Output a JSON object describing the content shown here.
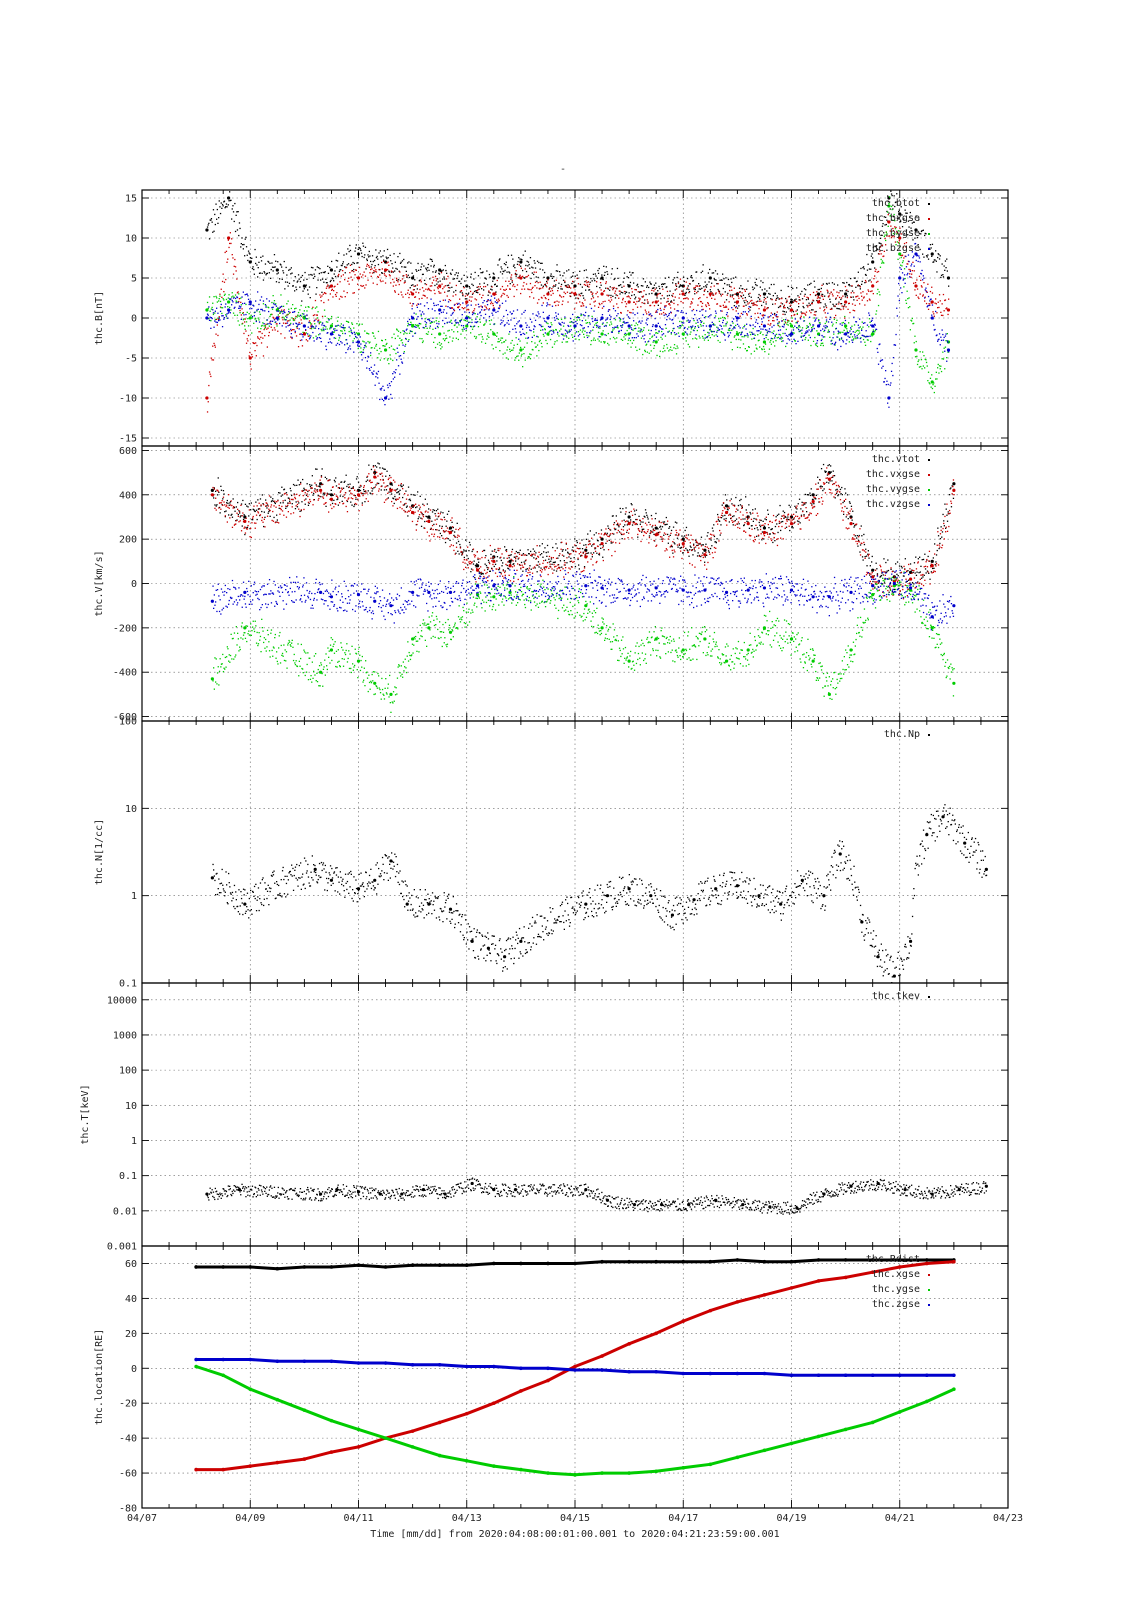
{
  "page": {
    "title": "-"
  },
  "x_axis": {
    "label": "Time [mm/dd]  from 2020:04:08:00:01:00.001  to  2020:04:21:23:59:00.001",
    "tick_labels": [
      "04/07",
      "04/09",
      "04/11",
      "04/13",
      "04/15",
      "04/17",
      "04/19",
      "04/21",
      "04/23"
    ],
    "range_days": [
      7,
      23
    ],
    "data_range_days": [
      8.0,
      22.0
    ]
  },
  "colors": {
    "black": "#000000",
    "red": "#cc0000",
    "green": "#00cc00",
    "blue": "#0000cc"
  },
  "chart_data": [
    {
      "type": "scatter",
      "ylabel": "thc.B[nT]",
      "yscale": "linear",
      "ylim": [
        -16,
        16
      ],
      "yticks": [
        15,
        10,
        5,
        0,
        -5,
        -10,
        -15
      ],
      "grid": true,
      "legend_placement": "top-right",
      "series": [
        {
          "name": "thc.btot",
          "color": "black",
          "x": [
            8.2,
            8.6,
            9.0,
            9.5,
            10.0,
            10.5,
            11.0,
            11.5,
            12.0,
            12.5,
            13.0,
            13.5,
            14.0,
            14.5,
            15.0,
            15.5,
            16.0,
            16.5,
            17.0,
            17.5,
            18.0,
            18.5,
            19.0,
            19.5,
            20.0,
            20.5,
            20.8,
            21.0,
            21.3,
            21.6,
            21.9
          ],
          "values": [
            11,
            15,
            7,
            6,
            4,
            6,
            8,
            7,
            5,
            6,
            4,
            5,
            7,
            5,
            4,
            5,
            4,
            3,
            4,
            5,
            3,
            3,
            2,
            3,
            3,
            7,
            15,
            13,
            11,
            8,
            5
          ]
        },
        {
          "name": "thc.bxgse",
          "color": "red",
          "x": [
            8.2,
            8.6,
            9.0,
            9.5,
            10.0,
            10.5,
            11.0,
            11.5,
            12.0,
            12.5,
            13.0,
            13.5,
            14.0,
            14.5,
            15.0,
            15.5,
            16.0,
            16.5,
            17.0,
            17.5,
            18.0,
            18.5,
            19.0,
            19.5,
            20.0,
            20.5,
            20.8,
            21.0,
            21.3,
            21.6,
            21.9
          ],
          "values": [
            -10,
            10,
            -5,
            0,
            -2,
            4,
            5,
            6,
            3,
            4,
            2,
            3,
            5,
            3,
            3,
            3,
            2,
            2,
            3,
            3,
            2,
            1,
            1,
            2,
            2,
            4,
            12,
            10,
            4,
            2,
            1
          ]
        },
        {
          "name": "thc.bygse",
          "color": "green",
          "x": [
            8.2,
            8.6,
            9.0,
            9.5,
            10.0,
            10.5,
            11.0,
            11.5,
            12.0,
            12.5,
            13.0,
            13.5,
            14.0,
            14.5,
            15.0,
            15.5,
            16.0,
            16.5,
            17.0,
            17.5,
            18.0,
            18.5,
            19.0,
            19.5,
            20.0,
            20.5,
            20.8,
            21.0,
            21.3,
            21.6,
            21.9
          ],
          "values": [
            1,
            2,
            0,
            1,
            0,
            -1,
            -2,
            -4,
            -1,
            -2,
            -1,
            -2,
            -4,
            -2,
            -1,
            -2,
            -2,
            -3,
            -2,
            -1,
            -2,
            -3,
            -1,
            -2,
            -1,
            -2,
            14,
            8,
            -4,
            -8,
            -3
          ]
        },
        {
          "name": "thc.bzgse",
          "color": "blue",
          "x": [
            8.2,
            8.6,
            9.0,
            9.5,
            10.0,
            10.5,
            11.0,
            11.5,
            12.0,
            12.5,
            13.0,
            13.5,
            14.0,
            14.5,
            15.0,
            15.5,
            16.0,
            16.5,
            17.0,
            17.5,
            18.0,
            18.5,
            19.0,
            19.5,
            20.0,
            20.5,
            20.8,
            21.0,
            21.3,
            21.6,
            21.9
          ],
          "values": [
            0,
            1,
            2,
            0,
            -1,
            -2,
            -3,
            -10,
            0,
            1,
            0,
            1,
            -1,
            0,
            -1,
            0,
            -1,
            -1,
            0,
            -1,
            0,
            -1,
            -2,
            -1,
            -2,
            -1,
            -10,
            5,
            8,
            0,
            -4
          ]
        }
      ]
    },
    {
      "type": "scatter",
      "ylabel": "thc.V[km/s]",
      "yscale": "linear",
      "ylim": [
        -620,
        620
      ],
      "yticks": [
        600,
        400,
        200,
        0,
        -200,
        -400,
        -600
      ],
      "grid": true,
      "legend_placement": "top-right",
      "series": [
        {
          "name": "thc.vtot",
          "color": "black",
          "x": [
            8.3,
            8.9,
            10.3,
            10.5,
            11.0,
            11.3,
            11.6,
            12.0,
            12.3,
            12.7,
            13.2,
            13.5,
            13.8,
            15.2,
            15.5,
            16.0,
            16.5,
            17.0,
            17.4,
            17.8,
            18.2,
            18.5,
            19.0,
            19.4,
            19.7,
            20.1,
            20.5,
            20.9,
            21.2,
            21.6,
            22.0
          ],
          "values": [
            420,
            300,
            450,
            400,
            420,
            500,
            450,
            350,
            300,
            250,
            80,
            120,
            100,
            150,
            200,
            300,
            250,
            200,
            150,
            350,
            300,
            250,
            300,
            400,
            500,
            300,
            60,
            30,
            50,
            100,
            450
          ]
        },
        {
          "name": "thc.vxgse",
          "color": "red",
          "x": [
            8.3,
            8.9,
            10.3,
            10.5,
            11.0,
            11.3,
            11.6,
            12.0,
            12.3,
            12.7,
            13.2,
            13.5,
            13.8,
            15.2,
            15.5,
            16.0,
            16.5,
            17.0,
            17.4,
            17.8,
            18.2,
            18.5,
            19.0,
            19.4,
            19.7,
            20.1,
            20.5,
            20.9,
            21.2,
            21.6,
            22.0
          ],
          "values": [
            400,
            280,
            420,
            380,
            400,
            480,
            420,
            320,
            280,
            230,
            60,
            100,
            80,
            120,
            180,
            270,
            220,
            180,
            130,
            320,
            270,
            230,
            270,
            370,
            470,
            270,
            30,
            10,
            20,
            80,
            420
          ]
        },
        {
          "name": "thc.vygse",
          "color": "green",
          "x": [
            8.3,
            8.9,
            10.3,
            10.5,
            11.0,
            11.3,
            11.6,
            12.0,
            12.3,
            12.7,
            13.2,
            13.5,
            13.8,
            15.2,
            15.5,
            16.0,
            16.5,
            17.0,
            17.4,
            17.8,
            18.2,
            18.5,
            19.0,
            19.4,
            19.7,
            20.1,
            20.5,
            20.9,
            21.2,
            21.6,
            22.0
          ],
          "values": [
            -430,
            -200,
            -400,
            -300,
            -350,
            -450,
            -500,
            -250,
            -200,
            -220,
            -50,
            -60,
            -40,
            -100,
            -200,
            -350,
            -250,
            -300,
            -250,
            -350,
            -300,
            -200,
            -250,
            -350,
            -500,
            -300,
            -50,
            -10,
            -30,
            -200,
            -450
          ]
        },
        {
          "name": "thc.vzgse",
          "color": "blue",
          "x": [
            8.3,
            8.9,
            10.3,
            10.5,
            11.0,
            11.3,
            11.6,
            12.0,
            12.3,
            12.7,
            13.2,
            13.5,
            13.8,
            15.2,
            15.5,
            16.0,
            16.5,
            17.0,
            17.4,
            17.8,
            18.2,
            18.5,
            19.0,
            19.4,
            19.7,
            20.1,
            20.5,
            20.9,
            21.2,
            21.6,
            22.0
          ],
          "values": [
            -80,
            -40,
            -40,
            -60,
            -50,
            -80,
            -100,
            -40,
            -40,
            -40,
            -10,
            -10,
            -10,
            -10,
            -20,
            -30,
            -20,
            -30,
            -30,
            -40,
            -30,
            -20,
            -30,
            -60,
            -60,
            -40,
            -10,
            0,
            -20,
            -150,
            -100
          ]
        }
      ]
    },
    {
      "type": "scatter",
      "ylabel": "thc.N[1/cc]",
      "yscale": "log",
      "ylim": [
        0.1,
        100
      ],
      "yticks": [
        100,
        10,
        1,
        0.1
      ],
      "grid": true,
      "legend_placement": "top-right",
      "series": [
        {
          "name": "thc.Np",
          "color": "black",
          "x": [
            8.3,
            8.9,
            10.2,
            10.5,
            11.0,
            11.3,
            11.6,
            11.9,
            12.3,
            12.7,
            13.1,
            13.4,
            13.7,
            14.0,
            15.2,
            15.6,
            16.0,
            16.4,
            16.8,
            17.2,
            17.6,
            18.0,
            18.4,
            18.8,
            19.2,
            19.6,
            19.9,
            20.3,
            20.6,
            20.9,
            21.2,
            21.5,
            21.8,
            22.2,
            22.6
          ],
          "values": [
            1.6,
            0.8,
            2.0,
            1.5,
            1.2,
            1.5,
            2.5,
            0.8,
            0.8,
            0.7,
            0.3,
            0.25,
            0.2,
            0.3,
            0.8,
            1.0,
            1.2,
            1.0,
            0.6,
            0.9,
            1.2,
            1.3,
            1.0,
            0.8,
            1.5,
            1.0,
            3.0,
            0.5,
            0.2,
            0.12,
            0.3,
            5.0,
            8.0,
            4.0,
            2.0
          ]
        }
      ]
    },
    {
      "type": "scatter",
      "ylabel": "thc.T[keV]",
      "yscale": "log",
      "ylim": [
        0.001,
        30000
      ],
      "yticks": [
        10000,
        1000,
        100,
        10,
        1,
        0.1,
        0.01,
        0.001
      ],
      "grid": true,
      "legend_placement": "top-right",
      "series": [
        {
          "name": "thc.tkev",
          "color": "black",
          "x": [
            8.2,
            8.8,
            10.3,
            10.6,
            11.0,
            11.4,
            11.8,
            12.2,
            12.6,
            13.1,
            13.5,
            13.9,
            15.2,
            15.6,
            16.1,
            16.6,
            17.1,
            17.6,
            18.1,
            18.6,
            19.1,
            19.6,
            20.1,
            20.6,
            21.1,
            21.6,
            22.1,
            22.6
          ],
          "values": [
            0.03,
            0.04,
            0.03,
            0.04,
            0.035,
            0.03,
            0.03,
            0.04,
            0.03,
            0.06,
            0.04,
            0.04,
            0.04,
            0.02,
            0.015,
            0.015,
            0.015,
            0.02,
            0.015,
            0.013,
            0.012,
            0.03,
            0.05,
            0.06,
            0.04,
            0.03,
            0.04,
            0.05
          ]
        }
      ]
    },
    {
      "type": "line",
      "ylabel": "thc.location[RE]",
      "yscale": "linear",
      "ylim": [
        -80,
        70
      ],
      "yticks": [
        60,
        40,
        20,
        0,
        -20,
        -40,
        -60,
        -80
      ],
      "grid": true,
      "legend_placement": "top-right",
      "series": [
        {
          "name": "thc.Rdist",
          "color": "black",
          "x": [
            8.0,
            8.5,
            9.0,
            9.5,
            10.0,
            10.5,
            11.0,
            11.5,
            12.0,
            12.5,
            13.0,
            13.5,
            14.0,
            14.5,
            15.0,
            15.5,
            16.0,
            16.5,
            17.0,
            17.5,
            18.0,
            18.5,
            19.0,
            19.5,
            20.0,
            20.5,
            21.0,
            21.5,
            22.0
          ],
          "values": [
            58,
            58,
            58,
            57,
            58,
            58,
            59,
            58,
            59,
            59,
            59,
            60,
            60,
            60,
            60,
            61,
            61,
            61,
            61,
            61,
            62,
            61,
            61,
            62,
            62,
            62,
            62,
            62,
            62
          ]
        },
        {
          "name": "thc.xgse",
          "color": "red",
          "x": [
            8.0,
            8.5,
            9.0,
            9.5,
            10.0,
            10.5,
            11.0,
            11.5,
            12.0,
            12.5,
            13.0,
            13.5,
            14.0,
            14.5,
            15.0,
            15.5,
            16.0,
            16.5,
            17.0,
            17.5,
            18.0,
            18.5,
            19.0,
            19.5,
            20.0,
            20.5,
            21.0,
            21.5,
            22.0
          ],
          "values": [
            -58,
            -58,
            -56,
            -54,
            -52,
            -48,
            -45,
            -40,
            -36,
            -31,
            -26,
            -20,
            -13,
            -7,
            1,
            7,
            14,
            20,
            27,
            33,
            38,
            42,
            46,
            50,
            52,
            55,
            58,
            60,
            61
          ]
        },
        {
          "name": "thc.ygse",
          "color": "green",
          "x": [
            8.0,
            8.5,
            9.0,
            9.5,
            10.0,
            10.5,
            11.0,
            11.5,
            12.0,
            12.5,
            13.0,
            13.5,
            14.0,
            14.5,
            15.0,
            15.5,
            16.0,
            16.5,
            17.0,
            17.5,
            18.0,
            18.5,
            19.0,
            19.5,
            20.0,
            20.5,
            21.0,
            21.5,
            22.0
          ],
          "values": [
            1,
            -4,
            -12,
            -18,
            -24,
            -30,
            -35,
            -40,
            -45,
            -50,
            -53,
            -56,
            -58,
            -60,
            -61,
            -60,
            -60,
            -59,
            -57,
            -55,
            -51,
            -47,
            -43,
            -39,
            -35,
            -31,
            -25,
            -19,
            -12
          ]
        },
        {
          "name": "thc.zgse",
          "color": "blue",
          "x": [
            8.0,
            8.5,
            9.0,
            9.5,
            10.0,
            10.5,
            11.0,
            11.5,
            12.0,
            12.5,
            13.0,
            13.5,
            14.0,
            14.5,
            15.0,
            15.5,
            16.0,
            16.5,
            17.0,
            17.5,
            18.0,
            18.5,
            19.0,
            19.5,
            20.0,
            20.5,
            21.0,
            21.5,
            22.0
          ],
          "values": [
            5,
            5,
            5,
            4,
            4,
            4,
            3,
            3,
            2,
            2,
            1,
            1,
            0,
            0,
            -1,
            -1,
            -2,
            -2,
            -3,
            -3,
            -3,
            -3,
            -4,
            -4,
            -4,
            -4,
            -4,
            -4,
            -4
          ]
        }
      ]
    }
  ]
}
